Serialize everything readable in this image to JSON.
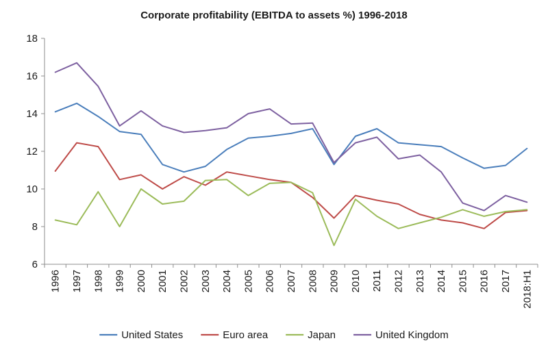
{
  "chart_data": {
    "type": "line",
    "title": "Corporate profitability (EBITDA to assets %) 1996-2018",
    "xlabel": "",
    "ylabel": "",
    "ylim": [
      6,
      18
    ],
    "yticks": [
      6,
      8,
      10,
      12,
      14,
      16,
      18
    ],
    "grid": false,
    "legend_position": "bottom",
    "categories": [
      "1996",
      "1997",
      "1998",
      "1999",
      "2000",
      "2001",
      "2002",
      "2003",
      "2004",
      "2005",
      "2006",
      "2007",
      "2008",
      "2009",
      "2010",
      "2011",
      "2012",
      "2013",
      "2014",
      "2015",
      "2016",
      "2017",
      "2018:H1"
    ],
    "series": [
      {
        "name": "United States",
        "color": "#4a7ebb",
        "values": [
          14.1,
          14.55,
          13.85,
          13.05,
          12.9,
          11.3,
          10.9,
          11.2,
          12.1,
          12.7,
          12.8,
          12.95,
          13.2,
          11.3,
          12.8,
          13.2,
          12.45,
          12.35,
          12.25,
          11.65,
          11.1,
          11.25,
          12.15
        ]
      },
      {
        "name": "Euro area",
        "color": "#be4b48",
        "values": [
          10.95,
          12.45,
          12.25,
          10.5,
          10.75,
          10.0,
          10.65,
          10.2,
          10.9,
          10.7,
          10.5,
          10.35,
          9.55,
          8.45,
          9.65,
          9.4,
          9.2,
          8.65,
          8.35,
          8.2,
          7.9,
          8.75,
          8.85
        ]
      },
      {
        "name": "Japan",
        "color": "#9bbb59",
        "values": [
          8.35,
          8.1,
          9.85,
          8.0,
          10.0,
          9.2,
          9.35,
          10.45,
          10.5,
          9.65,
          10.3,
          10.35,
          9.8,
          7.0,
          9.45,
          8.55,
          7.9,
          8.2,
          8.5,
          8.9,
          8.55,
          8.8,
          8.9
        ]
      },
      {
        "name": "United Kingdom",
        "color": "#7d60a0",
        "values": [
          16.2,
          16.7,
          15.45,
          13.35,
          14.15,
          13.35,
          13.0,
          13.1,
          13.25,
          14.0,
          14.25,
          13.45,
          13.5,
          11.4,
          12.45,
          12.75,
          11.6,
          11.8,
          10.9,
          9.25,
          8.85,
          9.65,
          9.3
        ]
      }
    ]
  }
}
